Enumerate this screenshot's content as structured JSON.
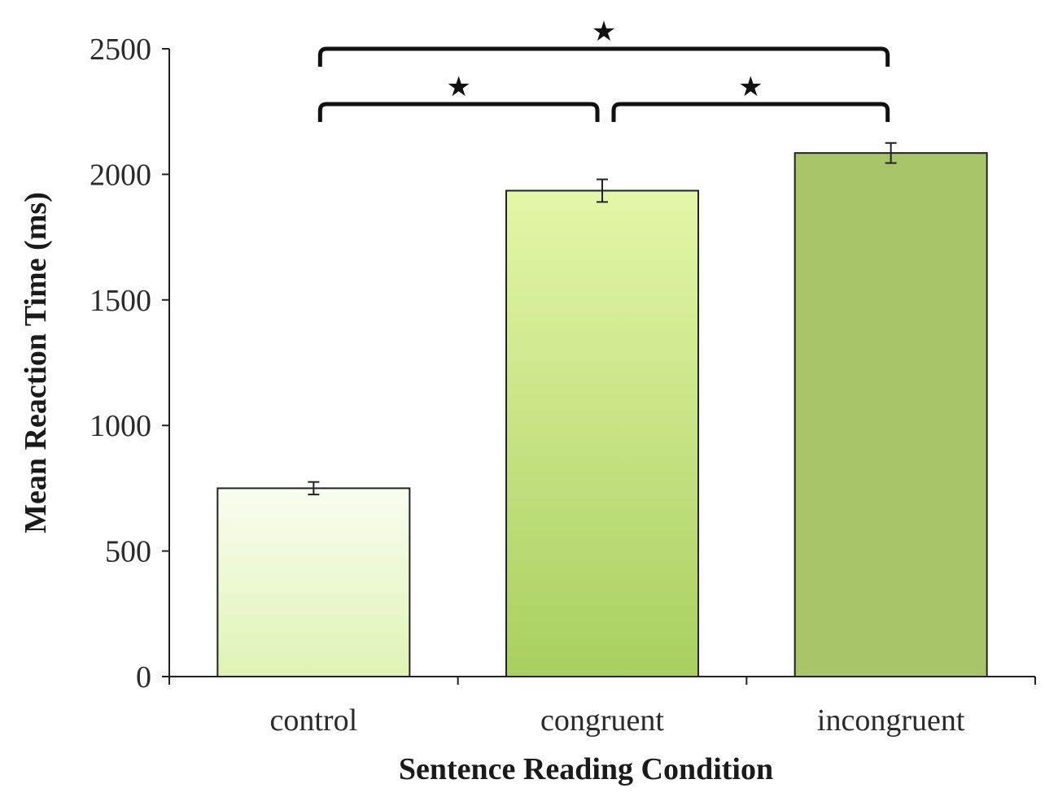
{
  "chart_data": {
    "type": "bar",
    "categories": [
      "control",
      "congruent",
      "incongruent"
    ],
    "values": [
      750,
      1935,
      2085
    ],
    "errors": [
      25,
      45,
      40
    ],
    "colors": {
      "bars": [
        [
          "#f9fdf0",
          "#dff3b5"
        ],
        [
          "#e4f6a8",
          "#a9cf5f"
        ],
        [
          "#a9c56a",
          "#a9c56a"
        ]
      ],
      "axis": "#222222",
      "bar_stroke": "#222222",
      "bracket": "#111111"
    },
    "xlabel": "Sentence Reading Condition",
    "ylabel": "Mean Reaction Time (ms)",
    "ylim": [
      0,
      2500
    ],
    "yticks": [
      0,
      500,
      1000,
      1500,
      2000,
      2500
    ],
    "grid": false,
    "legend": "none",
    "significance": [
      {
        "from": "control",
        "to": "incongruent",
        "marker": "★"
      },
      {
        "from": "control",
        "to": "congruent",
        "marker": "★"
      },
      {
        "from": "congruent",
        "to": "incongruent",
        "marker": "★"
      }
    ]
  }
}
